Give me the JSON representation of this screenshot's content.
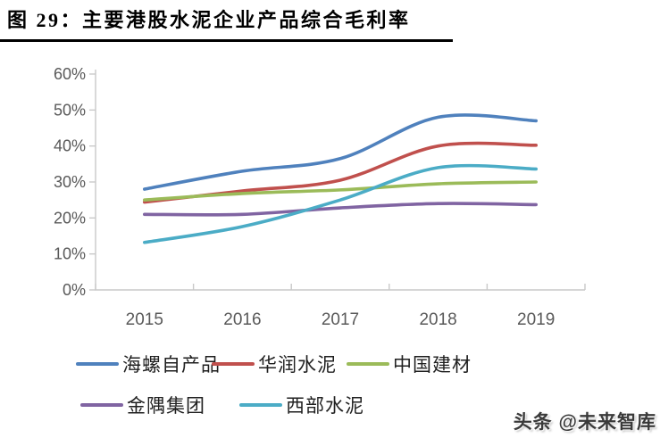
{
  "title": "图 29：主要港股水泥企业产品综合毛利率",
  "watermark": "头条 @未来智库",
  "chart_data": {
    "type": "line",
    "smooth": true,
    "grid": false,
    "legend_position": "bottom",
    "categories": [
      "2015",
      "2016",
      "2017",
      "2018",
      "2019"
    ],
    "series": [
      {
        "name": "海螺自产品",
        "color": "#4F81BD",
        "values": [
          28,
          33,
          36.5,
          48,
          47
        ]
      },
      {
        "name": "华润水泥",
        "color": "#C0504D",
        "values": [
          24.4,
          27.5,
          30.5,
          40,
          40.2
        ]
      },
      {
        "name": "中国建材",
        "color": "#9BBB59",
        "values": [
          25,
          26.8,
          27.8,
          29.5,
          30
        ]
      },
      {
        "name": "金隅集团",
        "color": "#8064A2",
        "values": [
          21,
          21,
          22.8,
          24,
          23.7
        ]
      },
      {
        "name": "西部水泥",
        "color": "#4BACC6",
        "values": [
          13.2,
          17.6,
          25,
          34,
          33.6
        ]
      }
    ],
    "xlabel": "",
    "ylabel": "",
    "ylim": [
      0,
      60
    ],
    "ytick_step": 10,
    "yticks": [
      "0%",
      "10%",
      "20%",
      "30%",
      "40%",
      "50%",
      "60%"
    ],
    "axis_color": "#C9C9C9",
    "tick_label_color": "#595959"
  }
}
